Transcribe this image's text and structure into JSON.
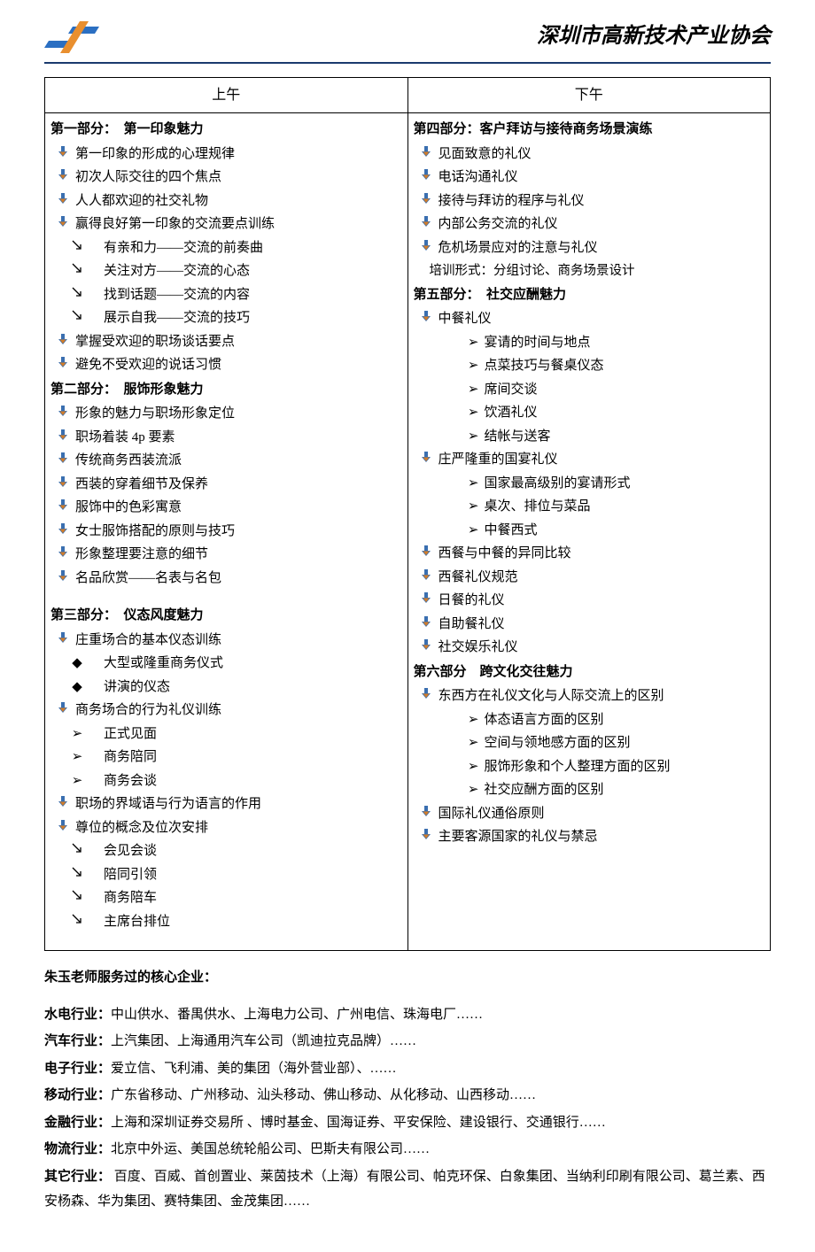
{
  "header": {
    "org_title": "深圳市高新技术产业协会",
    "logo_colors": {
      "blue": "#2b6fc2",
      "orange": "#e98f2f"
    }
  },
  "schedule": {
    "col_morning": "上午",
    "col_afternoon": "下午",
    "morning": [
      {
        "type": "section",
        "text": "第一部分：　第一印象魅力"
      },
      {
        "type": "b1",
        "text": "第一印象的形成的心理规律"
      },
      {
        "type": "b1",
        "text": "初次人际交往的四个焦点"
      },
      {
        "type": "b1",
        "text": "人人都欢迎的社交礼物"
      },
      {
        "type": "b1",
        "text": "赢得良好第一印象的交流要点训练"
      },
      {
        "type": "b2slash",
        "text": "有亲和力——交流的前奏曲"
      },
      {
        "type": "b2slash",
        "text": "关注对方——交流的心态"
      },
      {
        "type": "b2slash",
        "text": "找到话题——交流的内容"
      },
      {
        "type": "b2slash",
        "text": "展示自我——交流的技巧"
      },
      {
        "type": "b1",
        "text": "掌握受欢迎的职场谈话要点"
      },
      {
        "type": "b1",
        "text": "避免不受欢迎的说话习惯"
      },
      {
        "type": "section",
        "text": "第二部分：　服饰形象魅力"
      },
      {
        "type": "b1",
        "text": "形象的魅力与职场形象定位"
      },
      {
        "type": "b1",
        "text": "职场着装 4p 要素"
      },
      {
        "type": "b1",
        "text": "传统商务西装流派"
      },
      {
        "type": "b1",
        "text": "西装的穿着细节及保养"
      },
      {
        "type": "b1",
        "text": "服饰中的色彩寓意"
      },
      {
        "type": "b1",
        "text": "女士服饰搭配的原则与技巧"
      },
      {
        "type": "b1",
        "text": "形象整理要注意的细节"
      },
      {
        "type": "b1",
        "text": "名品欣赏——名表与名包"
      },
      {
        "type": "spacer",
        "text": ""
      },
      {
        "type": "section",
        "text": "第三部分：　仪态风度魅力"
      },
      {
        "type": "b1",
        "text": "庄重场合的基本仪态训练"
      },
      {
        "type": "b2diamond",
        "text": "大型或隆重商务仪式"
      },
      {
        "type": "b2diamond",
        "text": "讲演的仪态"
      },
      {
        "type": "b1",
        "text": "商务场合的行为礼仪训练"
      },
      {
        "type": "b2arrow",
        "text": "正式见面"
      },
      {
        "type": "b2arrow",
        "text": "商务陪同"
      },
      {
        "type": "b2arrow",
        "text": "商务会谈"
      },
      {
        "type": "b1",
        "text": "职场的界域语与行为语言的作用"
      },
      {
        "type": "b1",
        "text": "尊位的概念及位次安排"
      },
      {
        "type": "b2slash",
        "text": "会见会谈"
      },
      {
        "type": "b2slash",
        "text": "陪同引领"
      },
      {
        "type": "b2slash",
        "text": "商务陪车"
      },
      {
        "type": "b2slash",
        "text": "主席台排位"
      },
      {
        "type": "spacer",
        "text": ""
      }
    ],
    "afternoon": [
      {
        "type": "section",
        "text": "第四部分：客户拜访与接待商务场景演练"
      },
      {
        "type": "b1",
        "text": "见面致意的礼仪"
      },
      {
        "type": "b1",
        "text": "电话沟通礼仪"
      },
      {
        "type": "b1",
        "text": "接待与拜访的程序与礼仪"
      },
      {
        "type": "b1",
        "text": "内部公务交流的礼仪"
      },
      {
        "type": "b1",
        "text": "危机场景应对的注意与礼仪"
      },
      {
        "type": "note",
        "text": "培训形式：分组讨论、商务场景设计"
      },
      {
        "type": "section",
        "text": "第五部分：　社交应酬魅力"
      },
      {
        "type": "b1",
        "text": "中餐礼仪"
      },
      {
        "type": "b2arrowR",
        "text": "宴请的时间与地点"
      },
      {
        "type": "b2arrowR",
        "text": "点菜技巧与餐桌仪态"
      },
      {
        "type": "b2arrowR",
        "text": "席间交谈"
      },
      {
        "type": "b2arrowR",
        "text": "饮酒礼仪"
      },
      {
        "type": "b2arrowR",
        "text": "结帐与送客"
      },
      {
        "type": "b1",
        "text": "庄严隆重的国宴礼仪"
      },
      {
        "type": "b2arrowR",
        "text": "国家最高级别的宴请形式"
      },
      {
        "type": "b2arrowR",
        "text": "桌次、排位与菜品"
      },
      {
        "type": "b2arrowR",
        "text": "中餐西式"
      },
      {
        "type": "b1",
        "text": "西餐与中餐的异同比较"
      },
      {
        "type": "b1",
        "text": "西餐礼仪规范"
      },
      {
        "type": "b1",
        "text": "日餐的礼仪"
      },
      {
        "type": "b1",
        "text": "自助餐礼仪"
      },
      {
        "type": "b1",
        "text": "社交娱乐礼仪"
      },
      {
        "type": "section",
        "text": "第六部分　跨文化交往魅力"
      },
      {
        "type": "b1",
        "text": "东西方在礼仪文化与人际交流上的区别"
      },
      {
        "type": "b2arrowR",
        "text": "体态语言方面的区别"
      },
      {
        "type": "b2arrowR",
        "text": "空间与领地感方面的区别"
      },
      {
        "type": "b2arrowR",
        "text": "服饰形象和个人整理方面的区别"
      },
      {
        "type": "b2arrowR",
        "text": "社交应酬方面的区别"
      },
      {
        "type": "b1",
        "text": "国际礼仪通俗原则"
      },
      {
        "type": "b1",
        "text": "主要客源国家的礼仪与禁忌"
      }
    ]
  },
  "clients": {
    "heading": "朱玉老师服务过的核心企业：",
    "rows": [
      {
        "label": "水电行业：",
        "text": "中山供水、番禺供水、上海电力公司、广州电信、珠海电厂……"
      },
      {
        "label": "汽车行业：",
        "text": "上汽集团、上海通用汽车公司（凯迪拉克品牌）……"
      },
      {
        "label": "电子行业：",
        "text": "爱立信、飞利浦、美的集团（海外营业部）、……"
      },
      {
        "label": "移动行业：",
        "text": "广东省移动、广州移动、汕头移动、佛山移动、从化移动、山西移动……"
      },
      {
        "label": "金融行业：",
        "text": "上海和深圳证券交易所 、博时基金、国海证券、平安保险、建设银行、交通银行……"
      },
      {
        "label": "物流行业：",
        "text": "北京中外运、美国总统轮船公司、巴斯夫有限公司……"
      },
      {
        "label": "其它行业：",
        "text": " 百度、百威、首创置业、莱茵技术（上海）有限公司、帕克环保、白象集团、当纳利印刷有限公司、葛兰素、西安杨森、华为集团、赛特集团、金茂集团……"
      }
    ]
  },
  "bullets": {
    "down_arrow_color_top": "#3a6fb0",
    "down_arrow_color_bottom": "#d07c2a",
    "slash_char": "↘",
    "diamond_char": "◆",
    "arrow_char": "➢"
  }
}
